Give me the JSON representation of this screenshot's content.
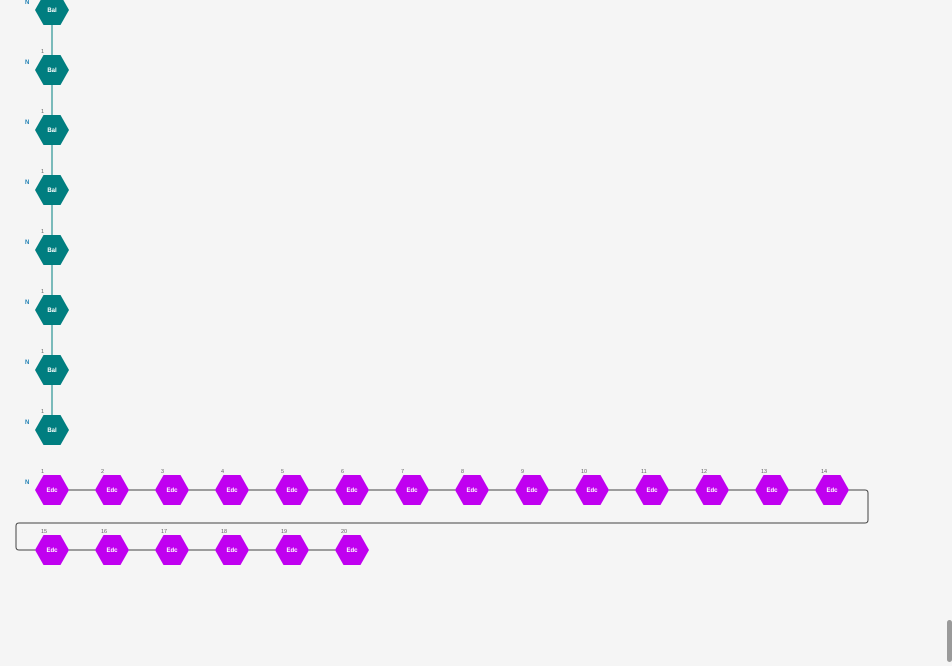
{
  "colors": {
    "background": "#f5f5f5",
    "chain_a": "#007e80",
    "chain_b": "#c000f0",
    "link": "#444444",
    "terminus_label": "#1f7fb3",
    "index_label": "#666666"
  },
  "chains": [
    {
      "name": "Bal",
      "color": "#007e80",
      "terminus": "N",
      "nodes": [
        {
          "label": "Bal",
          "index": ""
        },
        {
          "label": "Bal",
          "index": "1"
        },
        {
          "label": "Bal",
          "index": "1"
        },
        {
          "label": "Bal",
          "index": "1"
        },
        {
          "label": "Bal",
          "index": "1"
        },
        {
          "label": "Bal",
          "index": "1"
        },
        {
          "label": "Bal",
          "index": "1"
        },
        {
          "label": "Bal",
          "index": "1"
        }
      ]
    },
    {
      "name": "Edc",
      "color": "#c000f0",
      "terminus": "N",
      "nodes": [
        {
          "label": "Edc",
          "index": "1"
        },
        {
          "label": "Edc",
          "index": "2"
        },
        {
          "label": "Edc",
          "index": "3"
        },
        {
          "label": "Edc",
          "index": "4"
        },
        {
          "label": "Edc",
          "index": "5"
        },
        {
          "label": "Edc",
          "index": "6"
        },
        {
          "label": "Edc",
          "index": "7"
        },
        {
          "label": "Edc",
          "index": "8"
        },
        {
          "label": "Edc",
          "index": "9"
        },
        {
          "label": "Edc",
          "index": "10"
        },
        {
          "label": "Edc",
          "index": "11"
        },
        {
          "label": "Edc",
          "index": "12"
        },
        {
          "label": "Edc",
          "index": "13"
        },
        {
          "label": "Edc",
          "index": "14"
        },
        {
          "label": "Edc",
          "index": "15"
        },
        {
          "label": "Edc",
          "index": "16"
        },
        {
          "label": "Edc",
          "index": "17"
        },
        {
          "label": "Edc",
          "index": "18"
        },
        {
          "label": "Edc",
          "index": "19"
        },
        {
          "label": "Edc",
          "index": "20"
        }
      ]
    }
  ]
}
